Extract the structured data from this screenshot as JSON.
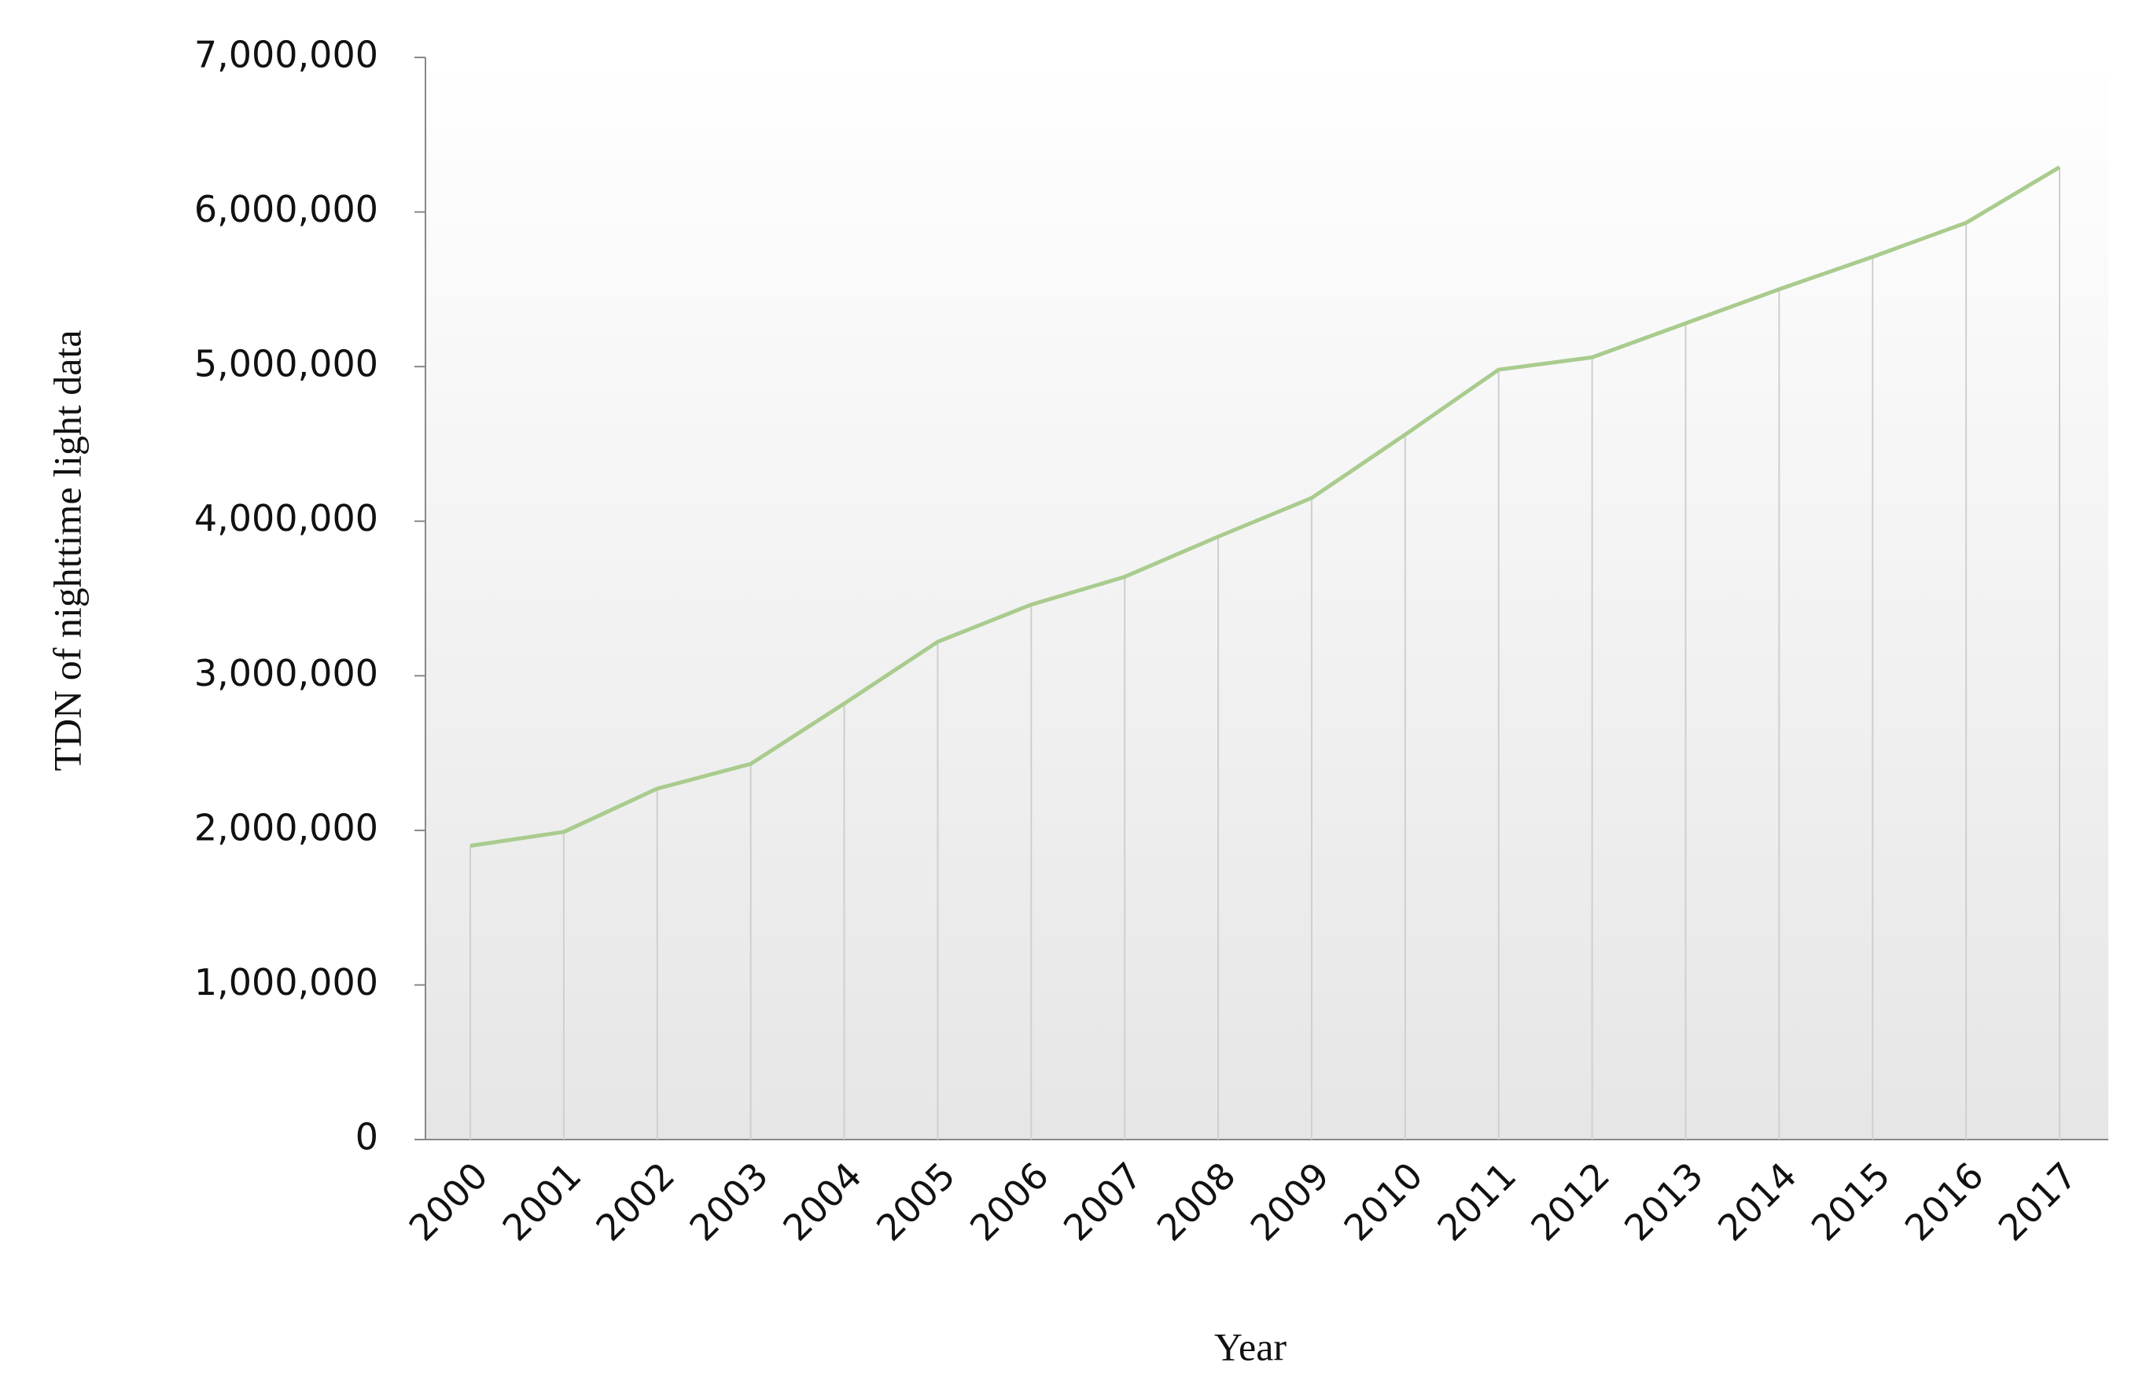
{
  "chart_data": {
    "type": "line",
    "x_label": "Year",
    "y_label": "TDN of nighttime light data",
    "categories": [
      "2000",
      "2001",
      "2002",
      "2003",
      "2004",
      "2005",
      "2006",
      "2007",
      "2008",
      "2009",
      "2010",
      "2011",
      "2012",
      "2013",
      "2014",
      "2015",
      "2016",
      "2017"
    ],
    "values": [
      1900000,
      1990000,
      2270000,
      2430000,
      2820000,
      3220000,
      3460000,
      3640000,
      3900000,
      4150000,
      4560000,
      4980000,
      5060000,
      5280000,
      5500000,
      5710000,
      5930000,
      6290000
    ],
    "color": "#a9cc8e",
    "ylim": [
      0,
      7000000
    ],
    "yticks": [
      0,
      {
        "value": 1000000,
        "label": "1,000,000"
      },
      {
        "value": 2000000,
        "label": "2,000,000"
      },
      {
        "value": 3000000,
        "label": "3,000,000"
      },
      {
        "value": 4000000,
        "label": "4,000,000"
      },
      {
        "value": 5000000,
        "label": "5,000,000"
      },
      {
        "value": 6000000,
        "label": "6,000,000"
      },
      {
        "value": 7000000,
        "label": "7,000,000"
      }
    ],
    "drop_lines": true
  }
}
